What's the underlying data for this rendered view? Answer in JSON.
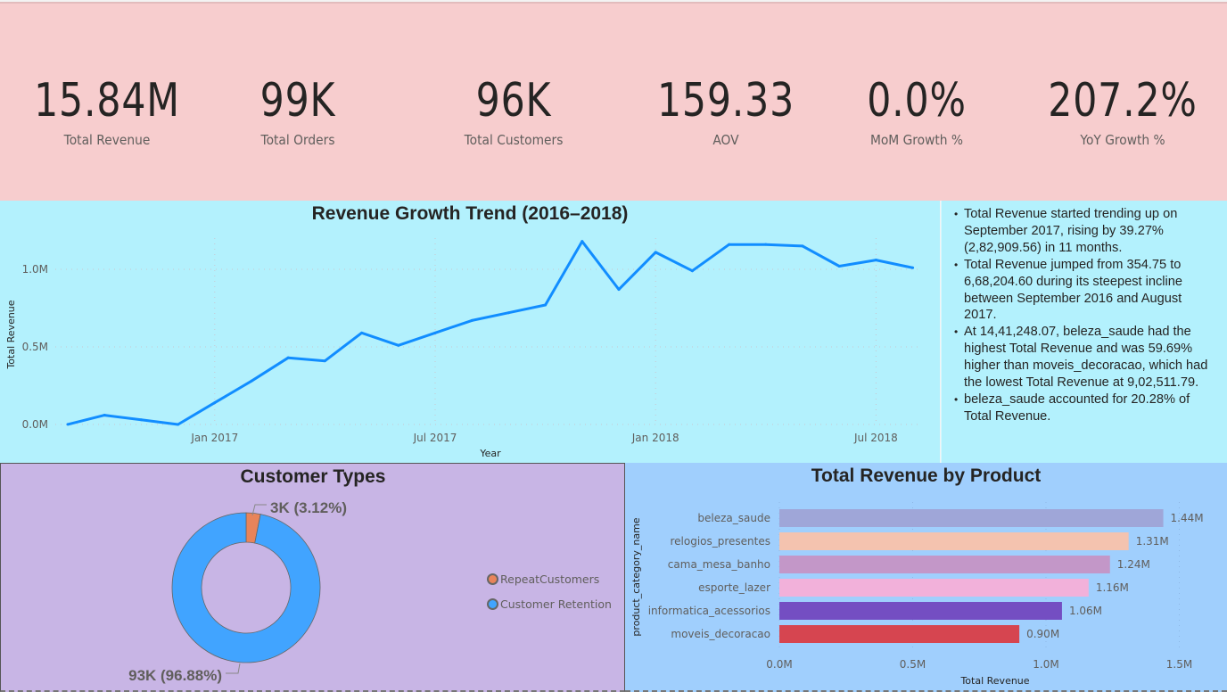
{
  "kpis": [
    {
      "value": "15.84M",
      "label": "Total Revenue"
    },
    {
      "value": "99K",
      "label": "Total Orders"
    },
    {
      "value": "96K",
      "label": "Total Customers"
    },
    {
      "value": "159.33",
      "label": "AOV"
    },
    {
      "value": "0.0%",
      "label": "MoM Growth %"
    },
    {
      "value": "207.2%",
      "label": "YoY Growth %"
    }
  ],
  "colors": {
    "kpi_band": "#f7cdce",
    "trend_bg": "#b3f1fd",
    "line": "#118dff",
    "customer_bg": "#c8b5e5",
    "product_bg": "#a0cffd",
    "repeat": "#e8845a",
    "retention": "#41a4ff"
  },
  "narrative": [
    "Total Revenue started trending up on September 2017, rising by 39.27% (2,82,909.56) in 11 months.",
    "Total Revenue jumped from 354.75 to 6,68,204.60 during its steepest incline between September 2016 and August 2017.",
    "At 14,41,248.07, beleza_saude had the highest Total Revenue and was 59.69% higher than moveis_decoracao, which had the lowest Total Revenue at 9,02,511.79.",
    "beleza_saude accounted for 20.28% of Total Revenue."
  ],
  "chart_data": [
    {
      "type": "line",
      "title": "Revenue Growth Trend (2016–2018)",
      "xlabel": "Year",
      "ylabel": "Total Revenue",
      "x": [
        "2016-09",
        "2016-10",
        "2016-11",
        "2016-12",
        "2017-01",
        "2017-02",
        "2017-03",
        "2017-04",
        "2017-05",
        "2017-06",
        "2017-07",
        "2017-08",
        "2017-09",
        "2017-10",
        "2017-11",
        "2017-12",
        "2018-01",
        "2018-02",
        "2018-03",
        "2018-04",
        "2018-05",
        "2018-06",
        "2018-07",
        "2018-08"
      ],
      "series": [
        {
          "name": "Total Revenue",
          "values": [
            0.0004,
            0.06,
            0.03,
            0.0,
            0.14,
            0.28,
            0.43,
            0.41,
            0.59,
            0.51,
            0.59,
            0.67,
            0.72,
            0.77,
            1.18,
            0.87,
            1.11,
            0.99,
            1.16,
            1.16,
            1.15,
            1.02,
            1.06,
            1.01
          ]
        }
      ],
      "value_unit": "M",
      "ylim": [
        0,
        1.2
      ],
      "yticks": [
        {
          "v": 0,
          "label": "0.0M"
        },
        {
          "v": 0.5,
          "label": "0.5M"
        },
        {
          "v": 1.0,
          "label": "1.0M"
        }
      ],
      "xticks": [
        {
          "x": "2017-01",
          "label": "Jan 2017"
        },
        {
          "x": "2017-07",
          "label": "Jul 2017"
        },
        {
          "x": "2018-01",
          "label": "Jan 2018"
        },
        {
          "x": "2018-07",
          "label": "Jul 2018"
        }
      ],
      "grid": true
    },
    {
      "type": "pie",
      "title": "Customer Types",
      "donut": true,
      "slices": [
        {
          "name": "RepeatCustomers",
          "value": 3,
          "percent": 3.12,
          "label": "3K (3.12%)",
          "color": "#e8845a"
        },
        {
          "name": "Customer Retention",
          "value": 93,
          "percent": 96.88,
          "label": "93K (96.88%)",
          "color": "#41a4ff"
        }
      ],
      "value_unit": "K",
      "legend": "right"
    },
    {
      "type": "bar",
      "orientation": "horizontal",
      "title": "Total Revenue by Product",
      "xlabel": "Total Revenue",
      "ylabel": "product_category_name",
      "categories": [
        "beleza_saude",
        "relogios_presentes",
        "cama_mesa_banho",
        "esporte_lazer",
        "informatica_acessorios",
        "moveis_decoracao"
      ],
      "values": [
        1.44,
        1.31,
        1.24,
        1.16,
        1.06,
        0.9
      ],
      "value_labels": [
        "1.44M",
        "1.31M",
        "1.24M",
        "1.16M",
        "1.06M",
        "0.90M"
      ],
      "bar_colors": [
        "#9fa6d8",
        "#f4c3af",
        "#c397c8",
        "#f2b1da",
        "#744ec2",
        "#d64550"
      ],
      "value_unit": "M",
      "xlim": [
        0,
        1.5
      ],
      "xticks": [
        {
          "v": 0,
          "label": "0.0M"
        },
        {
          "v": 0.5,
          "label": "0.5M"
        },
        {
          "v": 1.0,
          "label": "1.0M"
        },
        {
          "v": 1.5,
          "label": "1.5M"
        }
      ],
      "grid": true
    }
  ]
}
